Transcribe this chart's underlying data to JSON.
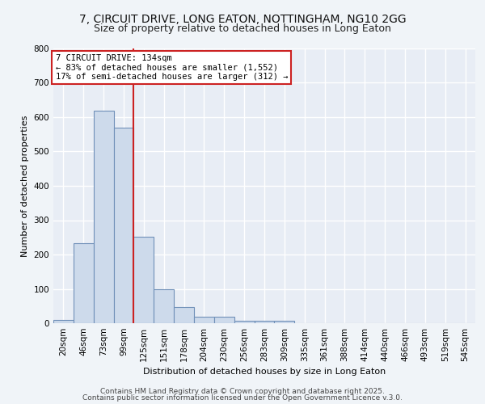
{
  "title_line1": "7, CIRCUIT DRIVE, LONG EATON, NOTTINGHAM, NG10 2GG",
  "title_line2": "Size of property relative to detached houses in Long Eaton",
  "xlabel": "Distribution of detached houses by size in Long Eaton",
  "ylabel": "Number of detached properties",
  "bar_labels": [
    "20sqm",
    "46sqm",
    "73sqm",
    "99sqm",
    "125sqm",
    "151sqm",
    "178sqm",
    "204sqm",
    "230sqm",
    "256sqm",
    "283sqm",
    "309sqm",
    "335sqm",
    "361sqm",
    "388sqm",
    "414sqm",
    "440sqm",
    "466sqm",
    "493sqm",
    "519sqm",
    "545sqm"
  ],
  "bar_values": [
    10,
    232,
    618,
    570,
    252,
    100,
    48,
    20,
    20,
    8,
    8,
    8,
    0,
    0,
    0,
    0,
    0,
    0,
    0,
    0,
    0
  ],
  "bar_color": "#cddaeb",
  "bar_edgecolor": "#7090b8",
  "background_color": "#e8edf5",
  "grid_color": "#ffffff",
  "vline_x": 3.5,
  "vline_color": "#cc2222",
  "annotation_text": "7 CIRCUIT DRIVE: 134sqm\n← 83% of detached houses are smaller (1,552)\n17% of semi-detached houses are larger (312) →",
  "annotation_box_color": "#ffffff",
  "annotation_box_edgecolor": "#cc2222",
  "ylim": [
    0,
    800
  ],
  "yticks": [
    0,
    100,
    200,
    300,
    400,
    500,
    600,
    700,
    800
  ],
  "footer_line1": "Contains HM Land Registry data © Crown copyright and database right 2025.",
  "footer_line2": "Contains public sector information licensed under the Open Government Licence v.3.0.",
  "title_fontsize": 10,
  "subtitle_fontsize": 9,
  "axis_label_fontsize": 8,
  "tick_fontsize": 7.5,
  "annotation_fontsize": 7.5,
  "footer_fontsize": 6.5
}
